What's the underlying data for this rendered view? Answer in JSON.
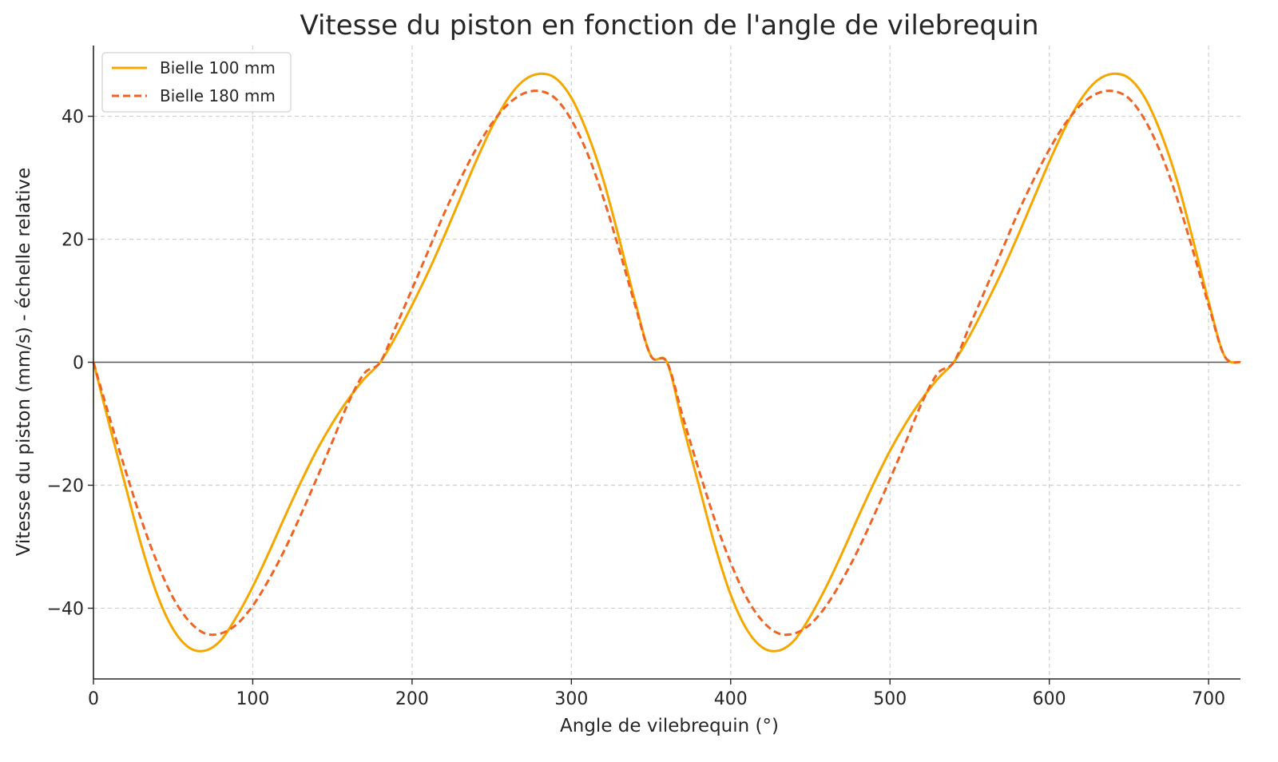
{
  "chart_data": {
    "type": "line",
    "title": "Vitesse du piston en fonction de l'angle de vilebrequin",
    "xlabel": "Angle de vilebrequin (°)",
    "ylabel": "Vitesse du piston (mm/s) - échelle relative",
    "xlim": [
      0,
      720
    ],
    "ylim": [
      -51.5,
      51.5
    ],
    "xticks": [
      0,
      100,
      200,
      300,
      400,
      500,
      600,
      700
    ],
    "xtick_labels": [
      "0",
      "100",
      "200",
      "300",
      "400",
      "500",
      "600",
      "700"
    ],
    "yticks": [
      -40,
      -20,
      0,
      20,
      40
    ],
    "ytick_labels": [
      "−40",
      "−20",
      "0",
      "20",
      "40"
    ],
    "grid": true,
    "legend_position": "top-left",
    "horizontal_reference_line": 0,
    "x": [
      0,
      10,
      20,
      30,
      40,
      50,
      60,
      70,
      80,
      90,
      100,
      110,
      120,
      130,
      140,
      150,
      160,
      170,
      180,
      190,
      200,
      210,
      220,
      230,
      240,
      250,
      260,
      270,
      280,
      290,
      300,
      310,
      320,
      330,
      340,
      350,
      360,
      370,
      380,
      390,
      400,
      410,
      420,
      430,
      440,
      450,
      460,
      470,
      480,
      490,
      500,
      510,
      520,
      530,
      540,
      550,
      560,
      570,
      580,
      590,
      600,
      610,
      620,
      630,
      640,
      650,
      660,
      670,
      680,
      690,
      700,
      710,
      720
    ],
    "series": [
      {
        "name": "Bielle 100 mm",
        "color": "#f5a700",
        "line_style": "solid",
        "values": [
          0,
          -10.2,
          -20.0,
          -29.7,
          -37.8,
          -43.4,
          -46.4,
          -46.9,
          -45.2,
          -41.3,
          -36.5,
          -31.0,
          -25.2,
          -19.6,
          -14.4,
          -9.9,
          -6.0,
          -2.7,
          0,
          4.3,
          9.3,
          14.6,
          20.4,
          26.5,
          32.6,
          38.2,
          42.8,
          45.8,
          46.9,
          46.2,
          43.0,
          37.3,
          29.7,
          20.1,
          9.9,
          1.0,
          0,
          -10.2,
          -20.0,
          -29.7,
          -37.8,
          -43.4,
          -46.4,
          -46.9,
          -45.2,
          -41.3,
          -36.5,
          -31.0,
          -25.2,
          -19.6,
          -14.4,
          -9.9,
          -6.0,
          -2.7,
          0,
          4.3,
          9.3,
          14.6,
          20.4,
          26.5,
          32.6,
          38.2,
          42.8,
          45.8,
          46.9,
          46.2,
          43.0,
          37.3,
          29.7,
          20.1,
          9.9,
          1.0,
          0
        ]
      },
      {
        "name": "Bielle 180 mm",
        "color": "#ef6325",
        "line_style": "dashed",
        "values": [
          0,
          -8.9,
          -17.5,
          -25.6,
          -32.6,
          -38.3,
          -42.1,
          -44.1,
          -44.1,
          -42.6,
          -39.6,
          -35.4,
          -30.5,
          -24.9,
          -19.0,
          -12.9,
          -6.6,
          -1.8,
          0,
          5.9,
          11.9,
          18.0,
          24.1,
          29.6,
          34.6,
          38.8,
          41.9,
          43.7,
          44.1,
          42.9,
          39.4,
          34.0,
          26.8,
          18.3,
          9.3,
          1.0,
          0,
          -8.9,
          -17.5,
          -25.6,
          -32.6,
          -38.3,
          -42.1,
          -44.1,
          -44.1,
          -42.6,
          -39.6,
          -35.4,
          -30.5,
          -24.9,
          -19.0,
          -12.9,
          -6.6,
          -1.8,
          0,
          5.9,
          11.9,
          18.0,
          24.1,
          29.6,
          34.6,
          38.8,
          41.9,
          43.7,
          44.1,
          42.9,
          39.4,
          34.0,
          26.8,
          18.3,
          9.3,
          1.0,
          0
        ]
      }
    ]
  }
}
